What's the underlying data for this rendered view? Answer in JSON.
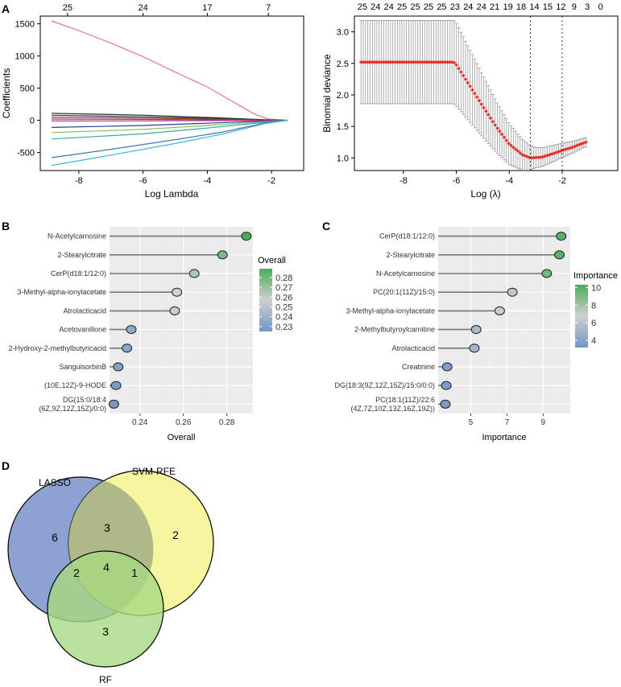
{
  "panel_labels": {
    "A": "A",
    "B": "B",
    "C": "C",
    "D": "D"
  },
  "chart_data": [
    {
      "id": "lasso_coef",
      "type": "line",
      "title": "",
      "xlabel": "Log Lambda",
      "ylabel": "Coefficients",
      "xlim": [
        -9.2,
        -1.0
      ],
      "ylim": [
        -780,
        1620
      ],
      "x_ticks": [
        -8,
        -6,
        -4,
        -2
      ],
      "y_ticks": [
        -500,
        0,
        500,
        1000,
        1500
      ],
      "top_ticks": [
        {
          "x": -8.35,
          "label": "25"
        },
        {
          "x": -6.0,
          "label": "24"
        },
        {
          "x": -4.0,
          "label": "17"
        },
        {
          "x": -2.1,
          "label": "7"
        }
      ],
      "series": [
        {
          "name": "pink",
          "color": "#e8758f",
          "x": [
            -8.85,
            -8,
            -7,
            -6,
            -5,
            -4,
            -3,
            -2.5,
            -2.1,
            -1.5
          ],
          "y": [
            1545,
            1395,
            1200,
            990,
            750,
            520,
            230,
            90,
            20,
            0
          ]
        },
        {
          "name": "black1",
          "color": "#222222",
          "x": [
            -8.85,
            -6,
            -4,
            -2.2,
            -1.5
          ],
          "y": [
            110,
            80,
            45,
            10,
            0
          ]
        },
        {
          "name": "black2",
          "color": "#333333",
          "x": [
            -8.85,
            -6,
            -4,
            -2.2,
            -1.5
          ],
          "y": [
            80,
            55,
            30,
            5,
            0
          ]
        },
        {
          "name": "brown",
          "color": "#8b4a2b",
          "x": [
            -8.85,
            -6,
            -4,
            -2.2,
            -1.5
          ],
          "y": [
            50,
            35,
            20,
            4,
            0
          ]
        },
        {
          "name": "purple",
          "color": "#7b3f8f",
          "x": [
            -8.85,
            -6,
            -4,
            -2.2,
            -1.5
          ],
          "y": [
            20,
            15,
            8,
            2,
            0
          ]
        },
        {
          "name": "magenta",
          "color": "#c0307a",
          "x": [
            -8.85,
            -6,
            -4,
            -2.2,
            -1.5
          ],
          "y": [
            -10,
            -8,
            -4,
            -1,
            0
          ]
        },
        {
          "name": "navy",
          "color": "#2b3c8f",
          "x": [
            -8.85,
            -6,
            -4,
            -2.2,
            -1.5
          ],
          "y": [
            -110,
            -80,
            -45,
            -10,
            0
          ]
        },
        {
          "name": "green",
          "color": "#7cbf5a",
          "x": [
            -8.85,
            -6,
            -4,
            -2.2,
            -1.5
          ],
          "y": [
            -190,
            -140,
            -80,
            -20,
            0
          ]
        },
        {
          "name": "teal",
          "color": "#3aaa9c",
          "x": [
            -8.85,
            -6,
            -4,
            -2.2,
            -1.5
          ],
          "y": [
            -290,
            -210,
            -120,
            -30,
            0
          ]
        },
        {
          "name": "blue",
          "color": "#3a78b8",
          "x": [
            -8.85,
            -7,
            -5,
            -3.5,
            -2.2,
            -1.5
          ],
          "y": [
            -580,
            -450,
            -300,
            -180,
            -40,
            0
          ]
        },
        {
          "name": "cyan",
          "color": "#3bb6d8",
          "x": [
            -8.85,
            -7,
            -5,
            -3.5,
            -2.2,
            -1.5
          ],
          "y": [
            -700,
            -540,
            -360,
            -210,
            -50,
            0
          ]
        }
      ]
    },
    {
      "id": "lasso_cv",
      "type": "scatter",
      "title": "",
      "xlabel": "Log (λ)",
      "ylabel": "Binomial deviance",
      "xlim": [
        -9.85,
        0.1
      ],
      "ylim": [
        0.8,
        3.25
      ],
      "x_ticks": [
        -8,
        -6,
        -4,
        -2
      ],
      "y_ticks": [
        1.0,
        1.5,
        2.0,
        2.5,
        3.0
      ],
      "top_ticks": [
        {
          "x": -9.55,
          "label": "25"
        },
        {
          "x": -9.05,
          "label": "24"
        },
        {
          "x": -8.55,
          "label": "24"
        },
        {
          "x": -8.05,
          "label": "25"
        },
        {
          "x": -7.55,
          "label": "25"
        },
        {
          "x": -7.05,
          "label": "25"
        },
        {
          "x": -6.55,
          "label": "25"
        },
        {
          "x": -6.05,
          "label": "23"
        },
        {
          "x": -5.55,
          "label": "24"
        },
        {
          "x": -5.05,
          "label": "24"
        },
        {
          "x": -4.55,
          "label": "21"
        },
        {
          "x": -4.05,
          "label": "19"
        },
        {
          "x": -3.55,
          "label": "18"
        },
        {
          "x": -3.05,
          "label": "14"
        },
        {
          "x": -2.55,
          "label": "15"
        },
        {
          "x": -2.05,
          "label": "12"
        },
        {
          "x": -1.55,
          "label": "9"
        },
        {
          "x": -1.05,
          "label": "3"
        },
        {
          "x": -0.55,
          "label": "0"
        }
      ],
      "vlines": [
        -3.2,
        -2.0
      ],
      "curve_x": [
        -9.6,
        -6.1,
        -6.0,
        -5.5,
        -5.0,
        -4.5,
        -4.0,
        -3.5,
        -3.2,
        -2.8,
        -2.4,
        -2.0,
        -1.6,
        -1.3,
        -1.1
      ],
      "curve_y": [
        2.52,
        2.52,
        2.48,
        2.15,
        1.82,
        1.5,
        1.22,
        1.05,
        1.0,
        1.01,
        1.06,
        1.12,
        1.17,
        1.22,
        1.25
      ],
      "errorbar": true,
      "point_color": "#e8312a",
      "errorbar_color": "#9a9a9a"
    },
    {
      "id": "svm_overall",
      "type": "scatter",
      "subtype": "lollipop",
      "title": "",
      "xlabel": "Overall",
      "ylabel": "",
      "xlim": [
        0.226,
        0.292
      ],
      "x_ticks": [
        0.24,
        0.26,
        0.28
      ],
      "x_tick_labels": [
        "0.24",
        "0.26",
        "0.28"
      ],
      "categories": [
        "N-Acetylcarnosine",
        "2-Stearylcitrate",
        "CerP(d18:1/12:0)",
        "3-Methyl-alpha-ionylacetate",
        "Atrolacticacid",
        "Acetovanillone",
        "2-Hydroxy-2-methylbutyricacid",
        "SanguisorbinB",
        "(10E,12Z)-9-HODE",
        "DG(15:0/18:4\n(6Z,9Z,12Z,15Z)/0:0)"
      ],
      "values": [
        0.289,
        0.278,
        0.265,
        0.257,
        0.256,
        0.236,
        0.234,
        0.23,
        0.229,
        0.228
      ],
      "legend_title": "Overall",
      "legend_range": [
        0.225,
        0.289
      ],
      "legend_ticks": [
        "0.28",
        "0.27",
        "0.26",
        "0.25",
        "0.24",
        "0.23"
      ],
      "legend_tick_values": [
        0.28,
        0.27,
        0.26,
        0.25,
        0.24,
        0.23
      ]
    },
    {
      "id": "rf_importance",
      "type": "scatter",
      "subtype": "lollipop",
      "title": "",
      "xlabel": "Importance",
      "ylabel": "",
      "xlim": [
        3.2,
        10.5
      ],
      "x_ticks": [
        5,
        7,
        9
      ],
      "x_tick_labels": [
        "5",
        "7",
        "9"
      ],
      "categories": [
        "CerP(d18:1/12:0)",
        "2-Stearylcitrate",
        "N-Acetylcarnosine",
        "PC(20:1(11Z)/15:0)",
        "3-Methyl-alpha-ionylacetate",
        "2-Methylbutyroylcarnitine",
        "Atrolacticacid",
        "Creatinine",
        "DG(18:3(9Z,12Z,15Z)/15:0/0:0)",
        "PC(18:1(11Z)/22:6\n(4Z,7Z,10Z,13Z,16Z,19Z))"
      ],
      "values": [
        10.0,
        9.9,
        9.2,
        7.3,
        6.6,
        5.3,
        5.2,
        3.7,
        3.65,
        3.6
      ],
      "legend_title": "Importance",
      "legend_range": [
        3.2,
        10.3
      ],
      "legend_ticks": [
        "10",
        "8",
        "6",
        "4"
      ],
      "legend_tick_values": [
        10,
        8,
        6,
        4
      ]
    },
    {
      "id": "venn",
      "type": "venn",
      "sets": [
        "LASSO",
        "SVM-RFE",
        "RF"
      ],
      "regions": {
        "LASSO_only": "6",
        "SVM_only": "2",
        "RF_only": "3",
        "LASSO_SVM": "3",
        "LASSO_RF": "2",
        "SVM_RF": "1",
        "all": "4"
      },
      "colors": {
        "LASSO": "#8ea2d2",
        "SVM-RFE": "#f4f48f",
        "RF": "#a8d982"
      }
    }
  ]
}
